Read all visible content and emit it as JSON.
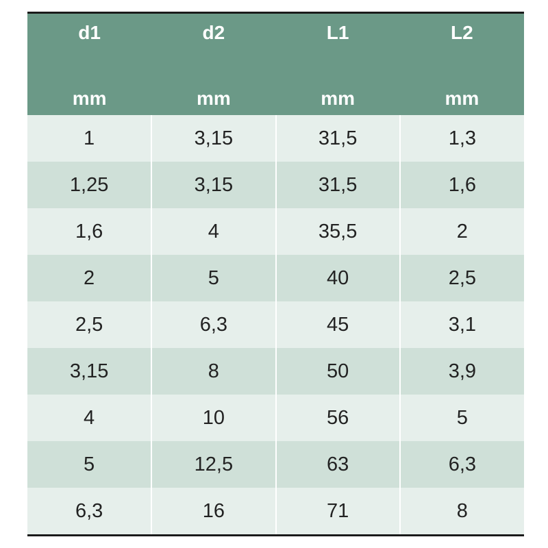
{
  "table": {
    "columns": [
      {
        "name": "d1",
        "unit": "mm"
      },
      {
        "name": "d2",
        "unit": "mm"
      },
      {
        "name": "L1",
        "unit": "mm"
      },
      {
        "name": "L2",
        "unit": "mm"
      }
    ],
    "rows": [
      [
        "1",
        "3,15",
        "31,5",
        "1,3"
      ],
      [
        "1,25",
        "3,15",
        "31,5",
        "1,6"
      ],
      [
        "1,6",
        "4",
        "35,5",
        "2"
      ],
      [
        "2",
        "5",
        "40",
        "2,5"
      ],
      [
        "2,5",
        "6,3",
        "45",
        "3,1"
      ],
      [
        "3,15",
        "8",
        "50",
        "3,9"
      ],
      [
        "4",
        "10",
        "56",
        "5"
      ],
      [
        "5",
        "12,5",
        "63",
        "6,3"
      ],
      [
        "6,3",
        "16",
        "71",
        "8"
      ]
    ]
  },
  "colors": {
    "header_bg": "#6b9987",
    "row_light": "#e6efeb",
    "row_dark": "#cfe0d8"
  }
}
